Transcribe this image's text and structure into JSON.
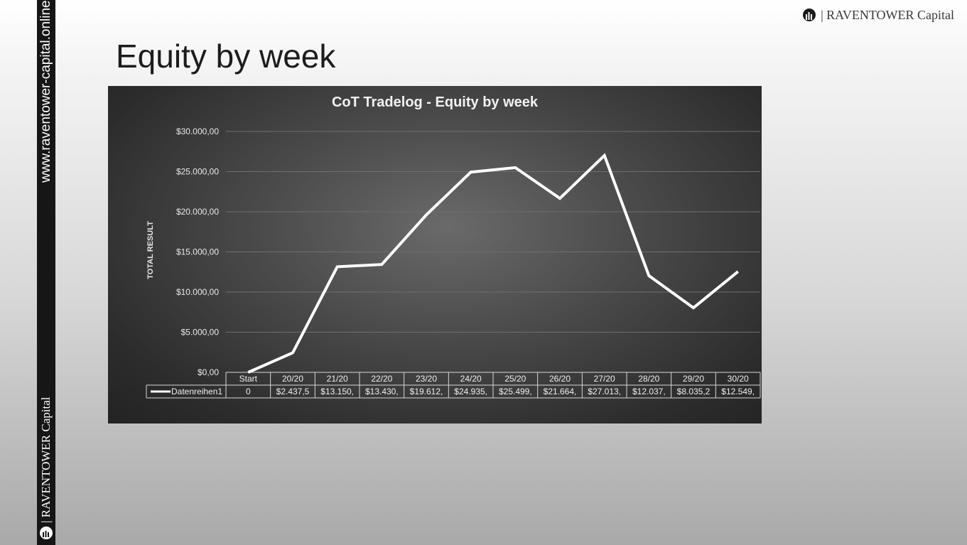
{
  "sidebar": {
    "url": "www.raventower-capital.online",
    "brand": "| RAVENTOWER Capital"
  },
  "header": {
    "brand": "| RAVENTOWER Capital",
    "logo_icon": "raventower-logo-icon"
  },
  "slide": {
    "title": "Equity by week"
  },
  "colors": {
    "line": "#ffffff",
    "plot_bg": "#3a3a3a",
    "sidebar": "#161616"
  },
  "chart_data": {
    "type": "line",
    "title": "CoT Tradelog - Equity by week",
    "ylabel": "TOTAL RESULT",
    "xlabel": "",
    "ylim": [
      0,
      30000
    ],
    "ytick_labels": [
      "$0,00",
      "$5.000,00",
      "$10.000,00",
      "$15.000,00",
      "$20.000,00",
      "$25.000,00",
      "$30.000,00"
    ],
    "categories": [
      "Start",
      "20/20",
      "21/20",
      "22/20",
      "23/20",
      "24/20",
      "25/20",
      "26/20",
      "27/20",
      "28/20",
      "29/20",
      "30/20"
    ],
    "grid": true,
    "data_table": true,
    "series": [
      {
        "name": "Datenreihen1",
        "values": [
          0,
          2437.5,
          13150,
          13430,
          19612,
          24935,
          25499,
          21664,
          27013,
          12037,
          8035.2,
          12549
        ],
        "table_labels": [
          "0",
          "$2.437,5",
          "$13.150,",
          "$13.430,",
          "$19.612,",
          "$24.935,",
          "$25.499,",
          "$21.664,",
          "$27.013,",
          "$12.037,",
          "$8.035,2",
          "$12.549,"
        ]
      }
    ]
  }
}
